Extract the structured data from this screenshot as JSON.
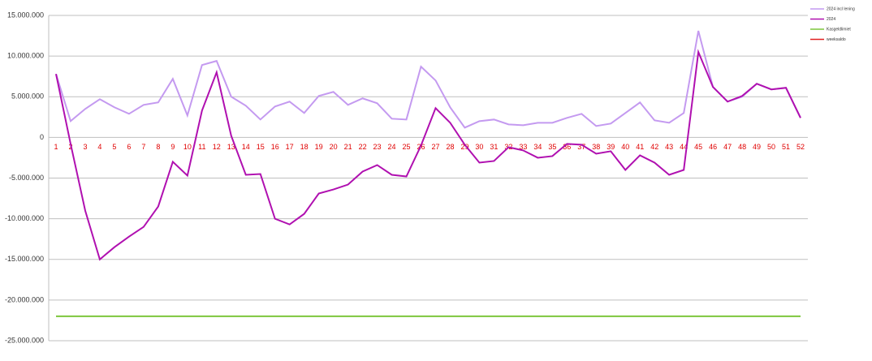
{
  "chart_data": {
    "type": "line",
    "categories": [
      "1",
      "2",
      "3",
      "4",
      "5",
      "6",
      "7",
      "8",
      "9",
      "10",
      "11",
      "12",
      "13",
      "14",
      "15",
      "16",
      "17",
      "18",
      "19",
      "20",
      "21",
      "22",
      "23",
      "24",
      "25",
      "26",
      "27",
      "28",
      "29",
      "30",
      "31",
      "32",
      "33",
      "34",
      "35",
      "36",
      "37",
      "38",
      "39",
      "40",
      "41",
      "42",
      "43",
      "44",
      "45",
      "46",
      "47",
      "48",
      "49",
      "50",
      "51",
      "52"
    ],
    "ylim": [
      -25000000,
      15000000
    ],
    "yticks": [
      {
        "value": -25000000,
        "label": "-25.000.000"
      },
      {
        "value": -20000000,
        "label": "-20.000.000"
      },
      {
        "value": -15000000,
        "label": "-15.000.000"
      },
      {
        "value": -10000000,
        "label": "-10.000.000"
      },
      {
        "value": -5000000,
        "label": "-5.000.000"
      },
      0,
      {
        "value": 5000000,
        "label": "5.000.000"
      },
      {
        "value": 10000000,
        "label": "10.000.000"
      },
      {
        "value": 15000000,
        "label": "15.000.000"
      }
    ],
    "grid": true,
    "legend": "top-right",
    "category_color": "#e00000",
    "series": [
      {
        "name": "2024 incl lening",
        "color": "#c49af0",
        "values": [
          7800000,
          2000000,
          3500000,
          4700000,
          3700000,
          2900000,
          4000000,
          4300000,
          7200000,
          2700000,
          8900000,
          9400000,
          5000000,
          3900000,
          2200000,
          3800000,
          4400000,
          3000000,
          5100000,
          5600000,
          4000000,
          4800000,
          4200000,
          2300000,
          2200000,
          8700000,
          7000000,
          3700000,
          1200000,
          2000000,
          2200000,
          1600000,
          1500000,
          1800000,
          1800000,
          2400000,
          2900000,
          1400000,
          1700000,
          3000000,
          4300000,
          2100000,
          1800000,
          3000000,
          13100000,
          6200000,
          4400000,
          5000000,
          6600000,
          5900000,
          6100000,
          2400000
        ]
      },
      {
        "name": "2024",
        "color": "#b010b0",
        "values": [
          7800000,
          -800000,
          -9000000,
          -15000000,
          -13500000,
          -12200000,
          -11000000,
          -8500000,
          -3000000,
          -4700000,
          3300000,
          8000000,
          200000,
          -4600000,
          -4500000,
          -10000000,
          -10700000,
          -9400000,
          -6900000,
          -6400000,
          -5800000,
          -4200000,
          -3400000,
          -4600000,
          -4800000,
          -1000000,
          3600000,
          1800000,
          -900000,
          -3100000,
          -2900000,
          -1200000,
          -1600000,
          -2500000,
          -2300000,
          -800000,
          -900000,
          -2000000,
          -1700000,
          -4000000,
          -2200000,
          -3100000,
          -4600000,
          -4000000,
          10500000,
          6200000,
          4400000,
          5100000,
          6600000,
          5900000,
          6100000,
          2400000
        ]
      },
      {
        "name": "Kasgeldlimiet",
        "color": "#7dc63c",
        "values": [
          -22000000,
          -22000000,
          -22000000,
          -22000000,
          -22000000,
          -22000000,
          -22000000,
          -22000000,
          -22000000,
          -22000000,
          -22000000,
          -22000000,
          -22000000,
          -22000000,
          -22000000,
          -22000000,
          -22000000,
          -22000000,
          -22000000,
          -22000000,
          -22000000,
          -22000000,
          -22000000,
          -22000000,
          -22000000,
          -22000000,
          -22000000,
          -22000000,
          -22000000,
          -22000000,
          -22000000,
          -22000000,
          -22000000,
          -22000000,
          -22000000,
          -22000000,
          -22000000,
          -22000000,
          -22000000,
          -22000000,
          -22000000,
          -22000000,
          -22000000,
          -22000000,
          -22000000,
          -22000000,
          -22000000,
          -22000000,
          -22000000,
          -22000000,
          -22000000,
          -22000000
        ]
      },
      {
        "name": "weeksaldo",
        "color": "#e02020",
        "values": [
          null,
          null,
          null,
          null,
          null,
          null,
          null,
          null,
          null,
          null,
          null,
          null,
          null,
          null,
          null,
          null,
          null,
          null,
          null,
          null,
          null,
          null,
          null,
          null,
          null,
          null,
          null,
          null,
          null,
          null,
          null,
          null,
          null,
          null,
          null,
          null,
          null,
          null,
          null,
          null,
          null,
          null,
          null,
          null,
          null,
          null,
          null,
          null,
          null,
          null,
          null,
          null
        ]
      }
    ]
  }
}
